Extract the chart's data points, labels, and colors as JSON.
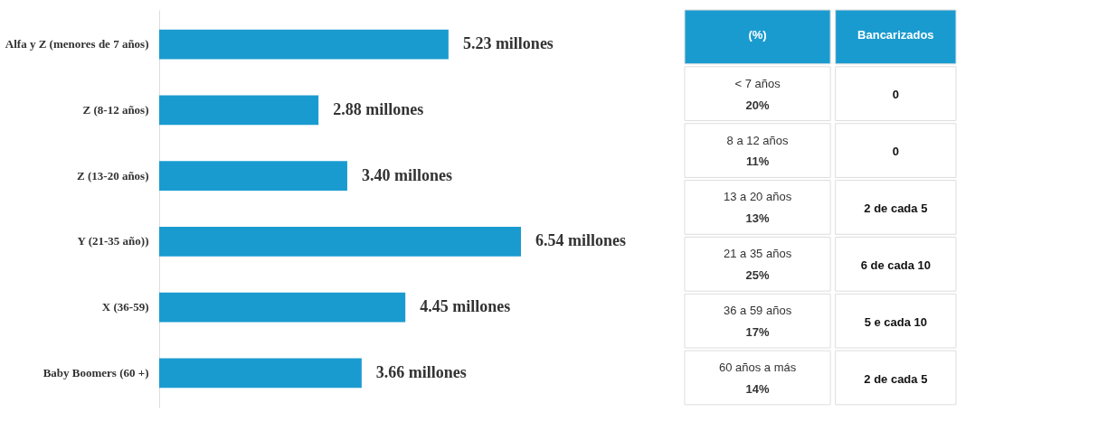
{
  "chart_data": [
    {
      "type": "bar",
      "orientation": "horizontal",
      "categories": [
        "Alfa y Z (menores de 7 años)",
        "Z (8-12 años)",
        "Z (13-20 años)",
        "Y (21-35 año))",
        "X (36-59)",
        "Baby Boomers (60 +)"
      ],
      "values": [
        5.23,
        2.88,
        3.4,
        6.54,
        4.45,
        3.66
      ],
      "color": "#1a9bd0",
      "value_labels": [
        "5.23 millones",
        "2.88 millones",
        "3.40 millones",
        "6.54 millones",
        "4.45 millones",
        "3.66 millones"
      ],
      "grid": false
    },
    {
      "type": "other",
      "annotations": [
        "(%)",
        "Bancarizados",
        "< 7 años",
        "20%",
        "0",
        "8 a 12 años",
        "11%",
        "0",
        "13 a 20 años",
        "13%",
        "2 de cada 5",
        "21 a 35 años",
        "25%",
        "6 de cada 10",
        "36 a 59 años",
        "17%",
        "5 e cada 10",
        "60 años a más",
        "14%",
        "2 de cada 5"
      ]
    }
  ]
}
